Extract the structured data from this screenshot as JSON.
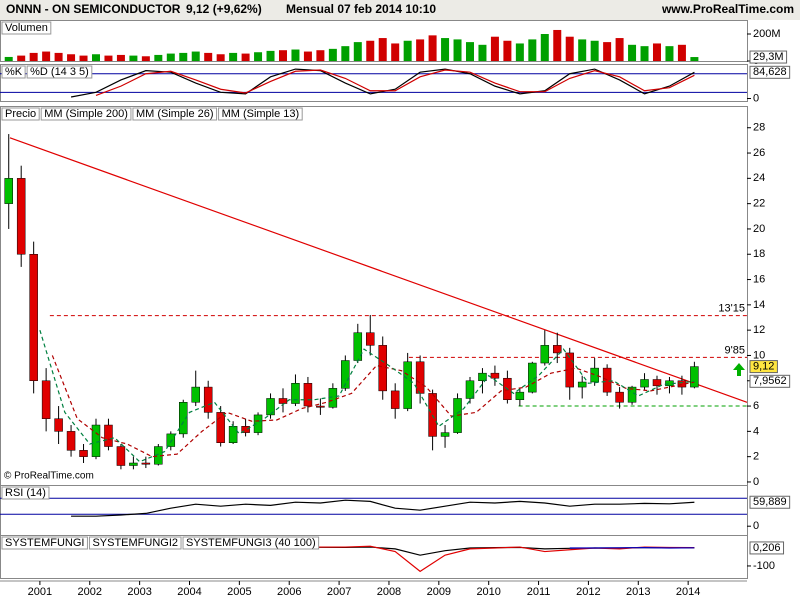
{
  "header": {
    "symbol": "ONNN - ON SEMICONDUCTOR",
    "quote": "9,12 (+9,62%)",
    "period": "Mensual  07 feb 2014 10:10",
    "site": "www.ProRealTime.com",
    "copyright": "© ProRealTime.com"
  },
  "x_axis": {
    "xlim": [
      2000.2,
      2015.18
    ],
    "xticks": [
      2001,
      2002,
      2003,
      2004,
      2005,
      2006,
      2007,
      2008,
      2009,
      2010,
      2011,
      2012,
      2013,
      2014
    ]
  },
  "chart_data": [
    {
      "type": "bar",
      "title": "Volumen",
      "up_color": "#00a000",
      "down_color": "#d00000",
      "x": [
        2000.375,
        2000.625,
        2000.875,
        2001.125,
        2001.375,
        2001.625,
        2001.875,
        2002.125,
        2002.375,
        2002.625,
        2002.875,
        2003.125,
        2003.375,
        2003.625,
        2003.875,
        2004.125,
        2004.375,
        2004.625,
        2004.875,
        2005.125,
        2005.375,
        2005.625,
        2005.875,
        2006.125,
        2006.375,
        2006.625,
        2006.875,
        2007.125,
        2007.375,
        2007.625,
        2007.875,
        2008.125,
        2008.375,
        2008.625,
        2008.875,
        2009.125,
        2009.375,
        2009.625,
        2009.875,
        2010.125,
        2010.375,
        2010.625,
        2010.875,
        2011.125,
        2011.375,
        2011.625,
        2011.875,
        2012.125,
        2012.375,
        2012.625,
        2012.875,
        2013.125,
        2013.375,
        2013.625,
        2013.875,
        2014.125
      ],
      "values": [
        30,
        40,
        60,
        70,
        60,
        50,
        40,
        50,
        40,
        45,
        40,
        35,
        45,
        55,
        60,
        70,
        60,
        50,
        60,
        55,
        65,
        75,
        80,
        85,
        70,
        80,
        90,
        110,
        140,
        150,
        170,
        130,
        150,
        160,
        190,
        170,
        160,
        140,
        120,
        180,
        150,
        130,
        160,
        200,
        230,
        180,
        160,
        150,
        140,
        170,
        120,
        110,
        130,
        110,
        120,
        29.3
      ],
      "ylim": [
        0,
        289
      ],
      "yticks": [
        0,
        {
          "value": 200,
          "label": "200M"
        }
      ],
      "value_tags": [
        {
          "value": 29.3,
          "label": "29,3M",
          "background": "#ffffff"
        }
      ]
    },
    {
      "type": "line",
      "x": [
        2000.625,
        2001.125,
        2001.625,
        2002.125,
        2002.625,
        2003.125,
        2003.625,
        2004.125,
        2004.625,
        2005.125,
        2005.625,
        2006.125,
        2006.625,
        2007.125,
        2007.625,
        2008.125,
        2008.625,
        2009.125,
        2009.625,
        2010.125,
        2010.625,
        2011.125,
        2011.625,
        2012.125,
        2012.625,
        2013.125,
        2013.625,
        2014.125
      ],
      "series": [
        {
          "name": "%K",
          "color": "#000000",
          "values": [
            null,
            null,
            5,
            20,
            60,
            90,
            85,
            50,
            20,
            15,
            70,
            95,
            90,
            50,
            15,
            30,
            85,
            95,
            80,
            40,
            15,
            25,
            80,
            95,
            60,
            15,
            40,
            84.628
          ]
        },
        {
          "name": "%D (14 3 5)",
          "color": "#d00000",
          "values": [
            null,
            null,
            null,
            10,
            40,
            80,
            88,
            60,
            30,
            18,
            55,
            88,
            92,
            65,
            25,
            25,
            70,
            92,
            85,
            50,
            22,
            22,
            65,
            90,
            70,
            25,
            35,
            75
          ]
        }
      ],
      "ylim": [
        -8,
        105
      ],
      "yticks": [
        0
      ],
      "hlines": [
        80,
        20
      ],
      "hline_color": "#0000a0",
      "value_tags": [
        {
          "value": 84.628,
          "label": "84,628",
          "background": "#ffffff"
        }
      ]
    },
    {
      "type": "candlestick",
      "name": "Precio",
      "up_color": "#00c000",
      "down_color": "#e00000",
      "x": [
        2000.375,
        2000.625,
        2000.875,
        2001.125,
        2001.375,
        2001.625,
        2001.875,
        2002.125,
        2002.375,
        2002.625,
        2002.875,
        2003.125,
        2003.375,
        2003.625,
        2003.875,
        2004.125,
        2004.375,
        2004.625,
        2004.875,
        2005.125,
        2005.375,
        2005.625,
        2005.875,
        2006.125,
        2006.375,
        2006.625,
        2006.875,
        2007.125,
        2007.375,
        2007.625,
        2007.875,
        2008.125,
        2008.375,
        2008.625,
        2008.875,
        2009.125,
        2009.375,
        2009.625,
        2009.875,
        2010.125,
        2010.375,
        2010.625,
        2010.875,
        2011.125,
        2011.375,
        2011.625,
        2011.875,
        2012.125,
        2012.375,
        2012.625,
        2012.875,
        2013.125,
        2013.375,
        2013.625,
        2013.875,
        2014.125
      ],
      "open": [
        22,
        24,
        18,
        8,
        5,
        4,
        2.5,
        2,
        4.5,
        2.8,
        1.3,
        1.5,
        1.4,
        2.8,
        3.8,
        6.3,
        7.5,
        5.5,
        3.1,
        4.4,
        3.9,
        5.3,
        6.6,
        6.2,
        7.8,
        6,
        5.9,
        7.4,
        9.6,
        11.8,
        10.8,
        7.2,
        5.8,
        9.5,
        7,
        3.6,
        3.9,
        6.6,
        8,
        8.6,
        8.2,
        6.5,
        7.1,
        9.4,
        10.8,
        10.2,
        7.5,
        7.9,
        9,
        7.1,
        6.3,
        7.5,
        8.1,
        7.6,
        8,
        7.5
      ],
      "high": [
        27.5,
        25,
        19,
        9,
        6,
        4.5,
        3,
        5,
        5,
        3,
        2,
        2,
        3,
        4,
        6.5,
        8.8,
        8,
        6,
        4.8,
        5,
        5.5,
        7,
        7.4,
        8.5,
        8.3,
        6.6,
        7.8,
        10,
        12.5,
        13.2,
        11.5,
        7.8,
        10.2,
        10,
        7.3,
        4.5,
        7,
        8.3,
        9,
        9.2,
        8.8,
        7.4,
        9.5,
        12,
        11.8,
        10.6,
        8.4,
        9.8,
        9.3,
        7.5,
        7.6,
        8.6,
        8.4,
        8.3,
        8.4,
        9.5
      ],
      "low": [
        20,
        17,
        7,
        4,
        3,
        2,
        1.5,
        1.8,
        2.5,
        1,
        1,
        1.1,
        1.3,
        2.5,
        3.5,
        6,
        5,
        2.8,
        3,
        3.6,
        3.7,
        5,
        5.5,
        6,
        5.5,
        5.3,
        5.8,
        7.2,
        9.4,
        10,
        6.5,
        5,
        5.6,
        6.2,
        2.5,
        2.7,
        3.8,
        6.2,
        7,
        7.6,
        6.2,
        6,
        7,
        9.2,
        9.4,
        6.5,
        6.6,
        7.6,
        6.8,
        5.8,
        6.1,
        7.3,
        6.9,
        7,
        6.9,
        7.4
      ],
      "close": [
        24,
        18,
        8,
        5,
        4,
        2.5,
        2,
        4.5,
        2.8,
        1.3,
        1.5,
        1.4,
        2.8,
        3.8,
        6.3,
        7.5,
        5.5,
        3.1,
        4.4,
        3.9,
        5.3,
        6.6,
        6.2,
        7.8,
        6,
        5.9,
        7.4,
        9.6,
        11.8,
        10.8,
        7.2,
        5.8,
        9.5,
        7,
        3.6,
        3.9,
        6.6,
        8,
        8.6,
        8.2,
        6.5,
        7.1,
        9.4,
        10.8,
        10.2,
        7.5,
        7.9,
        9,
        7.1,
        6.3,
        7.5,
        8.1,
        7.6,
        8,
        7.5,
        9.12
      ],
      "series": [
        {
          "name": "MM (Simple 200)",
          "color": "#707070"
        },
        {
          "name": "MM (Simple 26)",
          "color": "#b00000",
          "dashed": true,
          "x": [
            2001.25,
            2001.75,
            2002.25,
            2002.75,
            2003.25,
            2003.75,
            2004.25,
            2004.75,
            2005.25,
            2005.75,
            2006.25,
            2006.75,
            2007.25,
            2007.75,
            2008.25,
            2008.75,
            2009.25,
            2009.75,
            2010.25,
            2010.75,
            2011.25,
            2011.75,
            2012.25,
            2012.75,
            2013.25,
            2013.75,
            2014.125
          ],
          "values": [
            10,
            5,
            3.5,
            3,
            2,
            2.2,
            4,
            5.5,
            4.8,
            4.9,
            5.8,
            6.3,
            7,
            9.2,
            8.8,
            7.5,
            5.2,
            5.5,
            7.2,
            7.5,
            8.6,
            9,
            8.3,
            7.4,
            7.2,
            7.6,
            7.9
          ]
        },
        {
          "name": "MM (Simple 13)",
          "color": "#008040",
          "dashed": true,
          "x": [
            2001,
            2001.5,
            2002,
            2002.5,
            2003,
            2003.5,
            2004,
            2004.5,
            2005,
            2005.5,
            2006,
            2006.5,
            2007,
            2007.5,
            2008,
            2008.5,
            2009,
            2009.5,
            2010,
            2010.5,
            2011,
            2011.5,
            2012,
            2012.5,
            2013,
            2013.5,
            2014.125
          ],
          "values": [
            12,
            5.5,
            3,
            3.5,
            1.6,
            2.4,
            5.5,
            6.3,
            3.8,
            5,
            6.5,
            6.5,
            6.8,
            10.5,
            9.2,
            7.8,
            4.4,
            5.8,
            8.4,
            7,
            8.4,
            10.5,
            7.8,
            8,
            6.8,
            7.7,
            7.9562
          ]
        }
      ],
      "trendline": {
        "x": [
          2000.4,
          2015.18
        ],
        "values": [
          27.2,
          6.3
        ],
        "color": "#e00000"
      },
      "levels": [
        {
          "value": 13.15,
          "label": "13'15",
          "x_start": 2001.2,
          "color": "#d00000"
        },
        {
          "value": 9.85,
          "label": "9'85",
          "x_start": 2008.4,
          "color": "#d00000"
        },
        {
          "value": 6,
          "x_start": 2010.6,
          "color": "#00a000"
        }
      ],
      "ylim": [
        -0.24,
        29.56
      ],
      "yticks": [
        0,
        2,
        4,
        6,
        8,
        10,
        12,
        14,
        16,
        18,
        20,
        22,
        24,
        26,
        28
      ],
      "value_tags": [
        {
          "value": 9.12,
          "label": "9,12",
          "background": "#ffe640"
        },
        {
          "value": 7.9562,
          "label": "7,9562",
          "background": "#ffffff"
        }
      ]
    },
    {
      "type": "line",
      "title": "RSI (14)",
      "x": [
        2000.625,
        2001.125,
        2001.625,
        2002.125,
        2002.625,
        2003.125,
        2003.625,
        2004.125,
        2004.625,
        2005.125,
        2005.625,
        2006.125,
        2006.625,
        2007.125,
        2007.625,
        2008.125,
        2008.625,
        2009.125,
        2009.625,
        2010.125,
        2010.625,
        2011.125,
        2011.625,
        2012.125,
        2012.625,
        2013.125,
        2013.625,
        2014.125
      ],
      "series": [
        {
          "color": "#000000",
          "values": [
            null,
            null,
            25,
            25,
            28,
            32,
            45,
            55,
            50,
            55,
            52,
            60,
            58,
            65,
            62,
            45,
            40,
            50,
            60,
            58,
            62,
            58,
            50,
            55,
            55,
            57,
            56,
            59.889
          ]
        }
      ],
      "ylim": [
        -22,
        98
      ],
      "yticks": [
        0
      ],
      "hlines": [
        70,
        30
      ],
      "hline_color": "#0000a0",
      "value_tags": [
        {
          "value": 59.889,
          "label": "59,889",
          "background": "#ffffff"
        }
      ]
    },
    {
      "type": "line",
      "x": [
        2000.625,
        2001.125,
        2001.625,
        2002.125,
        2002.625,
        2003.125,
        2003.625,
        2004.125,
        2004.625,
        2005.125,
        2005.625,
        2006.125,
        2006.625,
        2007.125,
        2007.625,
        2008.125,
        2008.625,
        2009.125,
        2009.625,
        2010.125,
        2010.625,
        2011.125,
        2011.625,
        2012.125,
        2012.625,
        2013.125,
        2013.625,
        2014.125
      ],
      "series": [
        {
          "name": "SYSTEMFUNGI",
          "color": "#000000",
          "values": [
            null,
            null,
            null,
            null,
            null,
            null,
            null,
            null,
            0,
            2,
            3,
            2,
            4,
            3,
            5,
            -5,
            -40,
            -15,
            0,
            2,
            3,
            -5,
            -2,
            0,
            0,
            2,
            1,
            0.206
          ]
        },
        {
          "name": "SYSTEMFUNGI2",
          "color": "#e00000",
          "values": [
            null,
            null,
            null,
            null,
            null,
            null,
            null,
            null,
            -5,
            0,
            5,
            0,
            5,
            5,
            10,
            -20,
            -130,
            -40,
            -5,
            0,
            5,
            -20,
            -10,
            0,
            -5,
            5,
            3,
            2
          ]
        },
        {
          "name": "SYSTEMFUNGI3 (40 100)",
          "color": "#0000c0",
          "values": [
            null,
            null,
            null,
            null,
            null,
            null,
            null,
            null,
            null,
            null,
            null,
            null,
            null,
            null,
            null,
            null,
            null,
            null,
            null,
            null,
            null,
            null,
            0,
            0,
            1,
            2,
            0,
            1
          ]
        }
      ],
      "ylim": [
        -167,
        61
      ],
      "yticks": [
        -100
      ],
      "value_tags": [
        {
          "value": 0.206,
          "label": "0,206",
          "background": "#ffffff"
        }
      ]
    }
  ]
}
